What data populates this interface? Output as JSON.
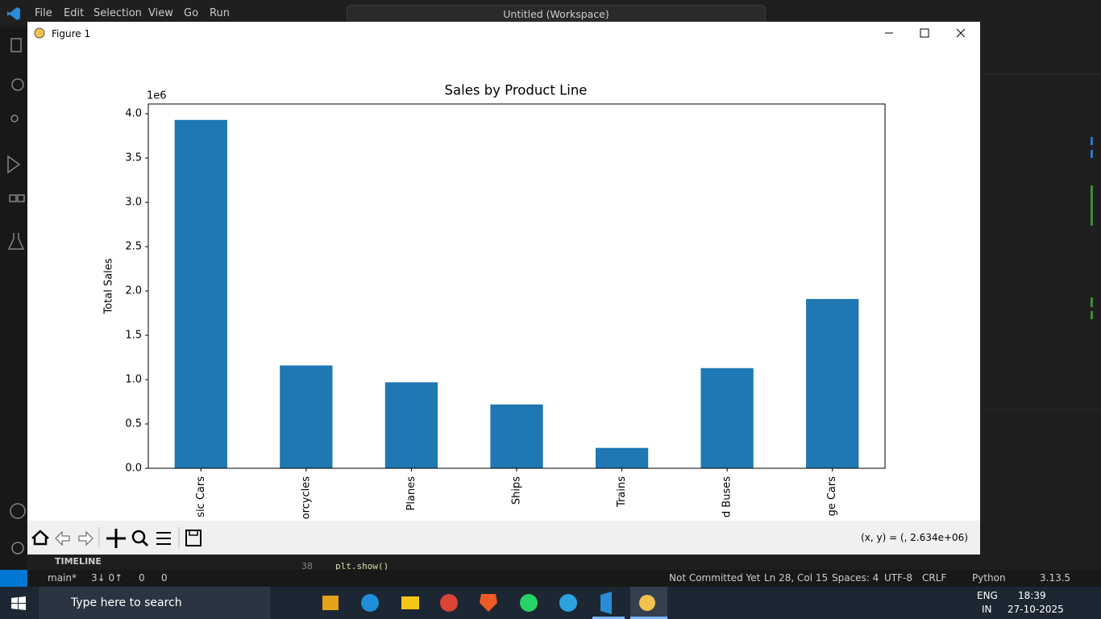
{
  "menu": [
    "File",
    "Edit",
    "Selection",
    "View",
    "Go",
    "Run"
  ],
  "search": "Untitled (Workspace)",
  "figure": {
    "title": "Figure 1",
    "coords": "(x, y) = (, 2.634e+06)"
  },
  "chart_data": {
    "type": "bar",
    "title": "Sales by Product Line",
    "y_label": "Total Sales",
    "y_offset_label": "1e6",
    "categories": [
      "sic Cars",
      "orcycles",
      "Planes",
      "Ships",
      "Trains",
      "d Buses",
      "ge Cars"
    ],
    "values": [
      3.93,
      1.16,
      0.97,
      0.72,
      0.23,
      1.13,
      1.91
    ],
    "color": "#1f77b4",
    "ylim": [
      0,
      4.11
    ],
    "yticks": [
      {
        "value": 0,
        "label": "0.0"
      },
      0.5,
      {
        "value": 1,
        "label": "1.0"
      },
      1.5,
      {
        "value": 2,
        "label": "2.0"
      },
      2.5,
      {
        "value": 3,
        "label": "3.0"
      },
      3.5,
      {
        "value": 4,
        "label": "4.0"
      }
    ],
    "grid": false
  },
  "panel": {
    "timeline": "TIMELINE",
    "line_number": "38",
    "code": "plt.show()"
  },
  "status": {
    "branch": "main*",
    "sync": "3↓ 0↑",
    "errors": "0",
    "warnings": "0",
    "blame": "Not Committed Yet",
    "position": "Ln 28, Col 15",
    "spaces": "Spaces: 4",
    "encoding": "UTF-8",
    "eol": "CRLF",
    "language": "Python",
    "version": "3.13.5"
  },
  "taskbar": {
    "search": "Type here to search",
    "lang1": "ENG",
    "lang2": "IN",
    "time": "18:39",
    "date": "27-10-2025"
  }
}
